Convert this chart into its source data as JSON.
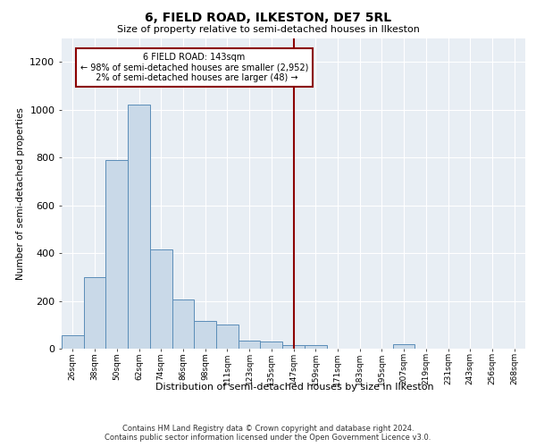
{
  "title": "6, FIELD ROAD, ILKESTON, DE7 5RL",
  "subtitle": "Size of property relative to semi-detached houses in Ilkeston",
  "xlabel": "Distribution of semi-detached houses by size in Ilkeston",
  "ylabel": "Number of semi-detached properties",
  "bin_labels": [
    "26sqm",
    "38sqm",
    "50sqm",
    "62sqm",
    "74sqm",
    "86sqm",
    "98sqm",
    "111sqm",
    "123sqm",
    "135sqm",
    "147sqm",
    "159sqm",
    "171sqm",
    "183sqm",
    "195sqm",
    "207sqm",
    "219sqm",
    "231sqm",
    "243sqm",
    "256sqm",
    "268sqm"
  ],
  "bar_heights": [
    55,
    300,
    790,
    1020,
    415,
    205,
    115,
    100,
    35,
    30,
    15,
    15,
    0,
    0,
    0,
    20,
    0,
    0,
    0,
    0,
    0
  ],
  "bar_color": "#c9d9e8",
  "bar_edge_color": "#5b8db8",
  "property_line_label": "6 FIELD ROAD: 143sqm",
  "smaller_pct": 98,
  "smaller_count": 2952,
  "larger_pct": 2,
  "larger_count": 48,
  "vline_color": "#8b0000",
  "annotation_box_color": "#8b0000",
  "ylim": [
    0,
    1300
  ],
  "yticks": [
    0,
    200,
    400,
    600,
    800,
    1000,
    1200
  ],
  "footer_line1": "Contains HM Land Registry data © Crown copyright and database right 2024.",
  "footer_line2": "Contains public sector information licensed under the Open Government Licence v3.0.",
  "background_color": "#e8eef4",
  "n_bins": 21,
  "vline_bin_index": 10
}
